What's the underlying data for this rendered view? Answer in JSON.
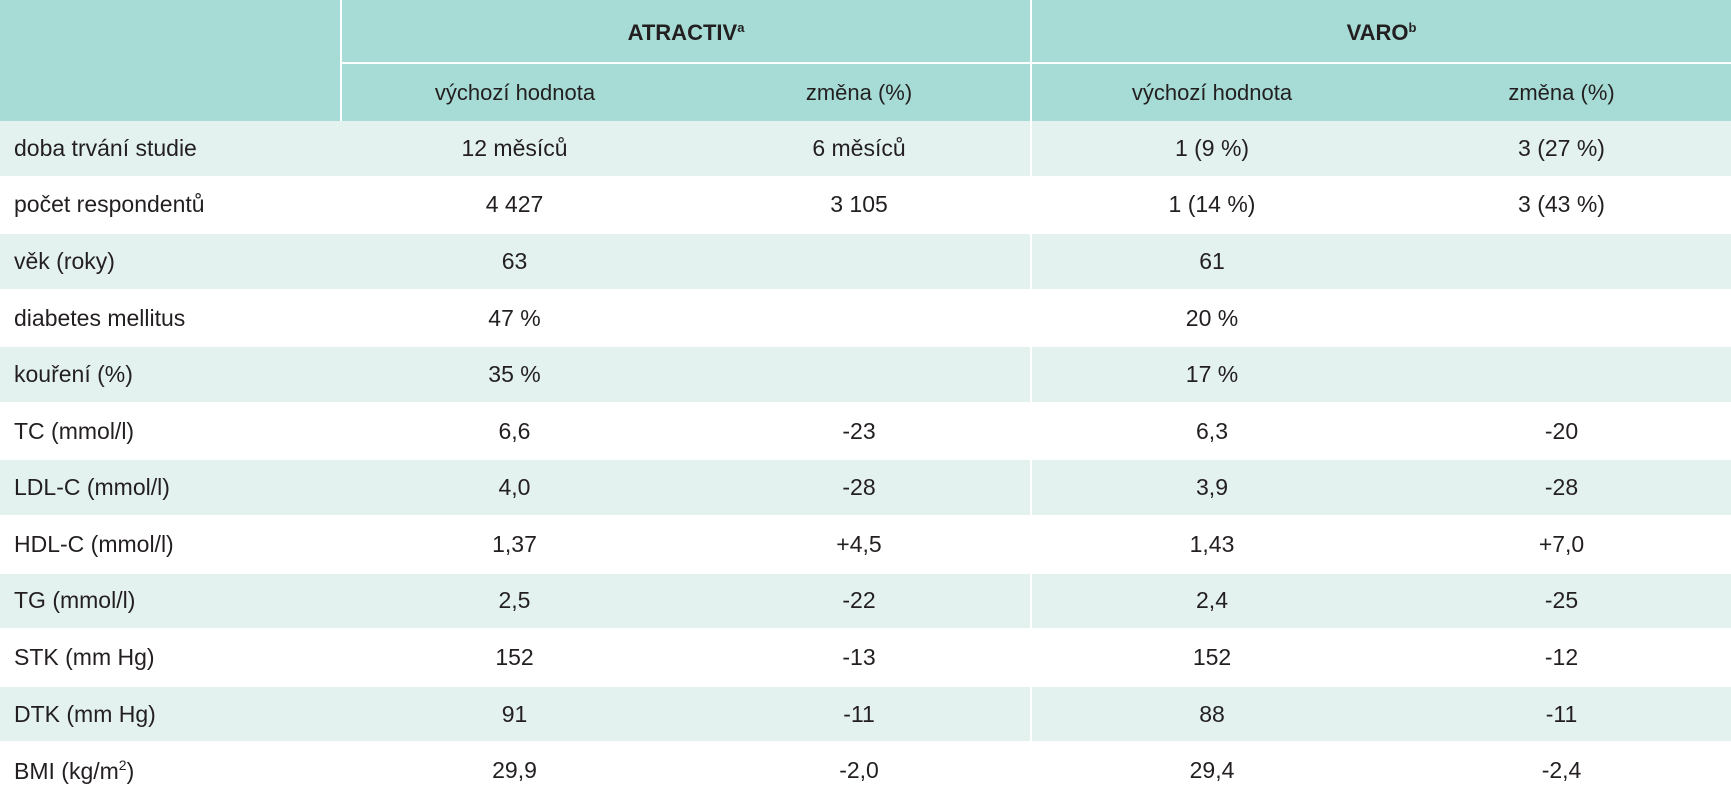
{
  "header": {
    "groups": [
      {
        "name": "ATRACTIV",
        "sup": "a"
      },
      {
        "name": "VARO",
        "sup": "b"
      }
    ],
    "subcolumns": [
      "výchozí hodnota",
      "změna (%)",
      "výchozí hodnota",
      "změna (%)"
    ]
  },
  "rows": [
    {
      "label": "doba trvání studie",
      "label_sup": "",
      "cells": [
        "12 měsíců",
        "6 měsíců",
        "1 (9 %)",
        "3 (27 %)"
      ]
    },
    {
      "label": "počet respondentů",
      "label_sup": "",
      "cells": [
        "4 427",
        "3 105",
        "1 (14 %)",
        "3 (43 %)"
      ]
    },
    {
      "label": "věk (roky)",
      "label_sup": "",
      "cells": [
        "63",
        "",
        "61",
        ""
      ]
    },
    {
      "label": "diabetes mellitus",
      "label_sup": "",
      "cells": [
        "47 %",
        "",
        "20 %",
        ""
      ]
    },
    {
      "label": "kouření (%)",
      "label_sup": "",
      "cells": [
        "35 %",
        "",
        "17 %",
        ""
      ]
    },
    {
      "label": "TC (mmol/l)",
      "label_sup": "",
      "cells": [
        "6,6",
        "-23",
        "6,3",
        "-20"
      ]
    },
    {
      "label": "LDL-C (mmol/l)",
      "label_sup": "",
      "cells": [
        "4,0",
        "-28",
        "3,9",
        "-28"
      ]
    },
    {
      "label": "HDL-C (mmol/l)",
      "label_sup": "",
      "cells": [
        "1,37",
        "+4,5",
        "1,43",
        "+7,0"
      ]
    },
    {
      "label": "TG (mmol/l)",
      "label_sup": "",
      "cells": [
        "2,5",
        "-22",
        "2,4",
        "-25"
      ]
    },
    {
      "label": "STK (mm Hg)",
      "label_sup": "",
      "cells": [
        "152",
        "-13",
        "152",
        "-12"
      ]
    },
    {
      "label": "DTK (mm Hg)",
      "label_sup": "",
      "cells": [
        "91",
        "-11",
        "88",
        "-11"
      ]
    },
    {
      "label": "BMI (kg/m",
      "label_sup": "2",
      "label_tail": ")",
      "cells": [
        "29,9",
        "-2,0",
        "29,4",
        "-2,4"
      ]
    }
  ]
}
